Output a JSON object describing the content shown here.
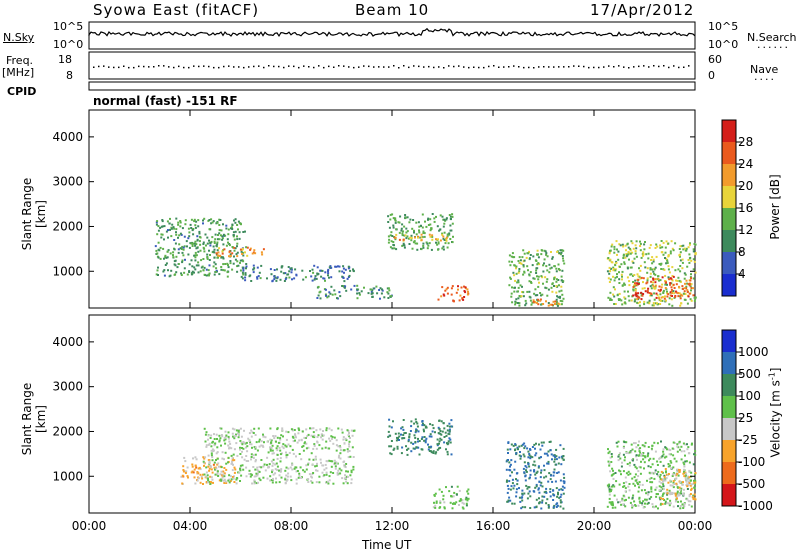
{
  "header": {
    "station": "Syowa East (fitACF)",
    "beam": "Beam 10",
    "date": "17/Apr/2012"
  },
  "nsky_panel": {
    "left_label": "N.Sky",
    "right_label": "N.Search",
    "ticks_left": [
      "10^5",
      "10^0"
    ],
    "ticks_right": [
      "10^5",
      "10^0"
    ]
  },
  "freq_panel": {
    "left_label_1": "Freq.",
    "left_label_2": "[MHz]",
    "right_label": "Nave",
    "ticks_left": [
      "18",
      "8"
    ],
    "ticks_right": [
      "60",
      "0"
    ]
  },
  "cpid": {
    "label": "CPID",
    "value": "normal (fast) -151 RF"
  },
  "x_axis": {
    "label": "Time UT",
    "ticks": [
      "00:00",
      "04:00",
      "08:00",
      "12:00",
      "16:00",
      "20:00",
      "00:00"
    ]
  },
  "colors": {
    "power_scale": [
      "#1a2ecf",
      "#3b5bbd",
      "#3d8a5c",
      "#5eb04a",
      "#e8d43a",
      "#f29b2c",
      "#ea5a1e",
      "#d41f1a"
    ],
    "velocity_scale": [
      "#1a2ecf",
      "#2f6fb8",
      "#3d8a5c",
      "#5fc04a",
      "#c8c8c8",
      "#f7a32b",
      "#ee6b1c",
      "#d4161a"
    ]
  },
  "chart_data": [
    {
      "type": "heatmap",
      "title": "",
      "xlabel": "Time UT",
      "ylabel": "Slant Range [km]",
      "x_range": [
        "00:00",
        "24:00"
      ],
      "ylim": [
        180,
        4600
      ],
      "y_ticks": [
        1000,
        2000,
        3000,
        4000
      ],
      "colorbar": {
        "label": "Power [dB]",
        "ticks": [
          "28",
          "24",
          "20",
          "16",
          "12",
          "8",
          "4"
        ],
        "range": [
          0,
          30
        ]
      },
      "regions": [
        {
          "t0": 2.6,
          "t1": 6.2,
          "r0": 900,
          "r1": 2200,
          "level": 10
        },
        {
          "t0": 5.0,
          "t1": 7.0,
          "r0": 1350,
          "r1": 1550,
          "level": 22
        },
        {
          "t0": 6.0,
          "t1": 10.5,
          "r0": 800,
          "r1": 1150,
          "level": 7
        },
        {
          "t0": 9.0,
          "t1": 12.0,
          "r0": 400,
          "r1": 700,
          "level": 9
        },
        {
          "t0": 11.8,
          "t1": 14.4,
          "r0": 1500,
          "r1": 2300,
          "level": 11
        },
        {
          "t0": 11.8,
          "t1": 14.2,
          "r0": 1700,
          "r1": 1850,
          "level": 20
        },
        {
          "t0": 13.8,
          "t1": 15.0,
          "r0": 350,
          "r1": 700,
          "level": 25
        },
        {
          "t0": 16.6,
          "t1": 18.8,
          "r0": 250,
          "r1": 1500,
          "level": 12
        },
        {
          "t0": 17.2,
          "t1": 18.6,
          "r0": 250,
          "r1": 400,
          "level": 24
        },
        {
          "t0": 20.5,
          "t1": 24.0,
          "r0": 250,
          "r1": 1700,
          "level": 14
        },
        {
          "t0": 21.5,
          "t1": 24.0,
          "r0": 400,
          "r1": 900,
          "level": 26
        }
      ]
    },
    {
      "type": "heatmap",
      "title": "",
      "xlabel": "Time UT",
      "ylabel": "Slant Range [km]",
      "x_range": [
        "00:00",
        "24:00"
      ],
      "ylim": [
        180,
        4600
      ],
      "y_ticks": [
        1000,
        2000,
        3000,
        4000
      ],
      "colorbar": {
        "label": "Velocity [m s^-1]",
        "ticks": [
          "1000",
          "500",
          "100",
          "25",
          "-25",
          "-100",
          "-500",
          "-1000"
        ],
        "range": [
          -1200,
          1200
        ]
      },
      "regions": [
        {
          "t0": 3.6,
          "t1": 5.8,
          "r0": 850,
          "r1": 1450,
          "level": -450
        },
        {
          "t0": 4.5,
          "t1": 10.5,
          "r0": 850,
          "r1": 2100,
          "level": 0
        },
        {
          "t0": 11.8,
          "t1": 14.4,
          "r0": 1500,
          "r1": 2300,
          "level": 600
        },
        {
          "t0": 13.6,
          "t1": 15.0,
          "r0": 300,
          "r1": 800,
          "level": 150
        },
        {
          "t0": 16.5,
          "t1": 18.8,
          "r0": 300,
          "r1": 1800,
          "level": 700
        },
        {
          "t0": 20.5,
          "t1": 24.0,
          "r0": 300,
          "r1": 1800,
          "level": 150
        },
        {
          "t0": 22.5,
          "t1": 24.0,
          "r0": 400,
          "r1": 1200,
          "level": -300
        }
      ]
    }
  ]
}
